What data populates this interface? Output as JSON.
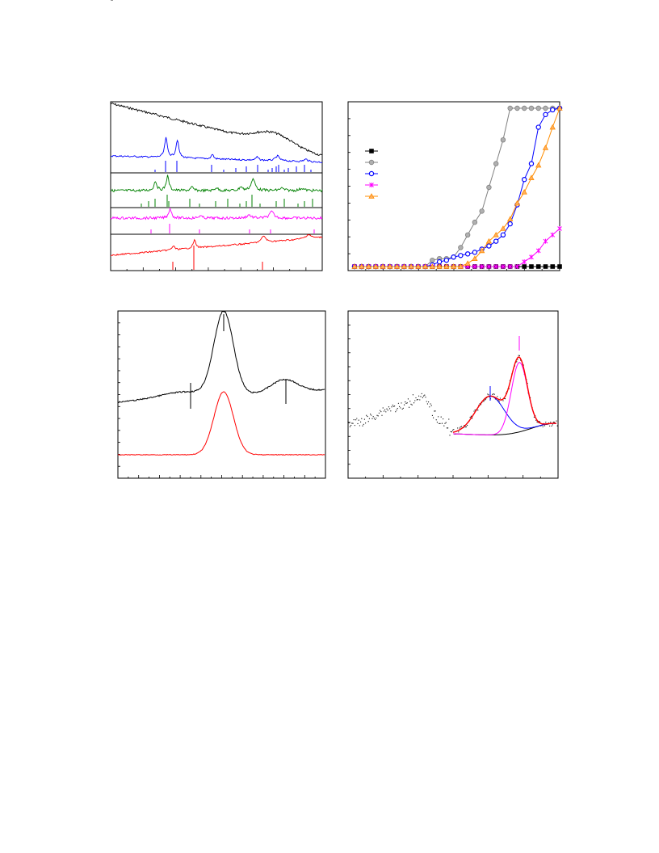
{
  "page": {
    "background": "#ffffff"
  },
  "chart_data": [
    {
      "type": "line",
      "subtype": "stacked-spectra-with-reference-sticks",
      "title": "",
      "xlabel": "",
      "ylabel": "",
      "panels": 4,
      "series": [
        {
          "color": "#000000",
          "panel": 1,
          "shape": "broad amorphous hump, decreasing baseline"
        },
        {
          "color": "#0000ff",
          "panel": 1,
          "shape": "two sharp peaks with reference sticks"
        },
        {
          "color": "#008000",
          "panel": 2,
          "shape": "multiple sharp peaks with reference sticks"
        },
        {
          "color": "#ff00ff",
          "panel": 3,
          "shape": "few peaks with reference sticks"
        },
        {
          "color": "#ff0000",
          "panel": 4,
          "shape": "rising baseline with small peaks and reference sticks"
        }
      ],
      "grid": false,
      "legend": "none"
    },
    {
      "type": "line",
      "title": "",
      "xlabel": "",
      "ylabel": "",
      "legend_position": "upper-left",
      "x": [
        1,
        2,
        3,
        4,
        5,
        6,
        7,
        8,
        9,
        10,
        11,
        12,
        13,
        14,
        15,
        16,
        17,
        18,
        19,
        20,
        21,
        22,
        23,
        24,
        25,
        26,
        27,
        28,
        29,
        30
      ],
      "series": [
        {
          "color": "#000000",
          "marker": "square",
          "values": [
            0,
            0,
            0,
            0,
            0,
            0,
            0,
            0,
            0,
            0,
            0,
            0,
            0,
            0,
            0,
            0,
            0,
            0,
            0,
            0,
            0,
            0,
            0,
            0,
            0,
            0,
            0,
            0,
            0,
            0
          ]
        },
        {
          "color": "#808080",
          "marker": "circle",
          "values": [
            0,
            0,
            0,
            0,
            0,
            0,
            0,
            0,
            0,
            0,
            0,
            0.04,
            0.05,
            0.05,
            0.06,
            0.12,
            0.2,
            0.28,
            0.35,
            0.5,
            0.65,
            0.8,
            1,
            1,
            1,
            1,
            1,
            1,
            1,
            1
          ]
        },
        {
          "color": "#0000ff",
          "marker": "hexagon",
          "values": [
            0,
            0,
            0,
            0,
            0,
            0,
            0,
            0,
            0,
            0,
            0,
            0.01,
            0.03,
            0.04,
            0.06,
            0.07,
            0.08,
            0.09,
            0.11,
            0.13,
            0.16,
            0.2,
            0.27,
            0.39,
            0.55,
            0.65,
            0.88,
            0.96,
            0.99,
            1
          ]
        },
        {
          "color": "#ff00ff",
          "marker": "star",
          "values": [
            0,
            0,
            0,
            0,
            0,
            0,
            0,
            0,
            0,
            0,
            0,
            0,
            0,
            0,
            0,
            0,
            0,
            0,
            0,
            0,
            0,
            0,
            0,
            0,
            0.03,
            0.06,
            0.1,
            0.16,
            0.2,
            0.24
          ]
        },
        {
          "color": "#ff8c00",
          "marker": "triangle",
          "values": [
            0,
            0,
            0,
            0,
            0,
            0,
            0,
            0,
            0,
            0,
            0,
            0,
            0,
            0,
            0,
            0,
            0.02,
            0.05,
            0.1,
            0.16,
            0.2,
            0.24,
            0.3,
            0.4,
            0.47,
            0.56,
            0.64,
            0.75,
            0.88,
            1
          ]
        }
      ],
      "grid": false
    },
    {
      "type": "line",
      "title": "",
      "xlabel": "",
      "ylabel": "",
      "series": [
        {
          "color": "#000000",
          "shape": "central peak with two side peaks, marked by three vertical bars"
        },
        {
          "color": "#ff0000",
          "shape": "single central peak"
        }
      ],
      "grid": false,
      "legend": "none"
    },
    {
      "type": "scatter",
      "subtype": "peak-deconvolution",
      "title": "",
      "xlabel": "",
      "ylabel": "",
      "series": [
        {
          "color": "#000000",
          "style": "dots",
          "shape": "noisy experimental data"
        },
        {
          "color": "#ff0000",
          "style": "line",
          "shape": "cumulative fit"
        },
        {
          "color": "#0000ff",
          "style": "line",
          "shape": "component 1"
        },
        {
          "color": "#ff00ff",
          "style": "line",
          "shape": "component 2"
        },
        {
          "color": "#000000",
          "style": "line",
          "shape": "baseline"
        }
      ],
      "grid": false,
      "legend": "none"
    }
  ]
}
